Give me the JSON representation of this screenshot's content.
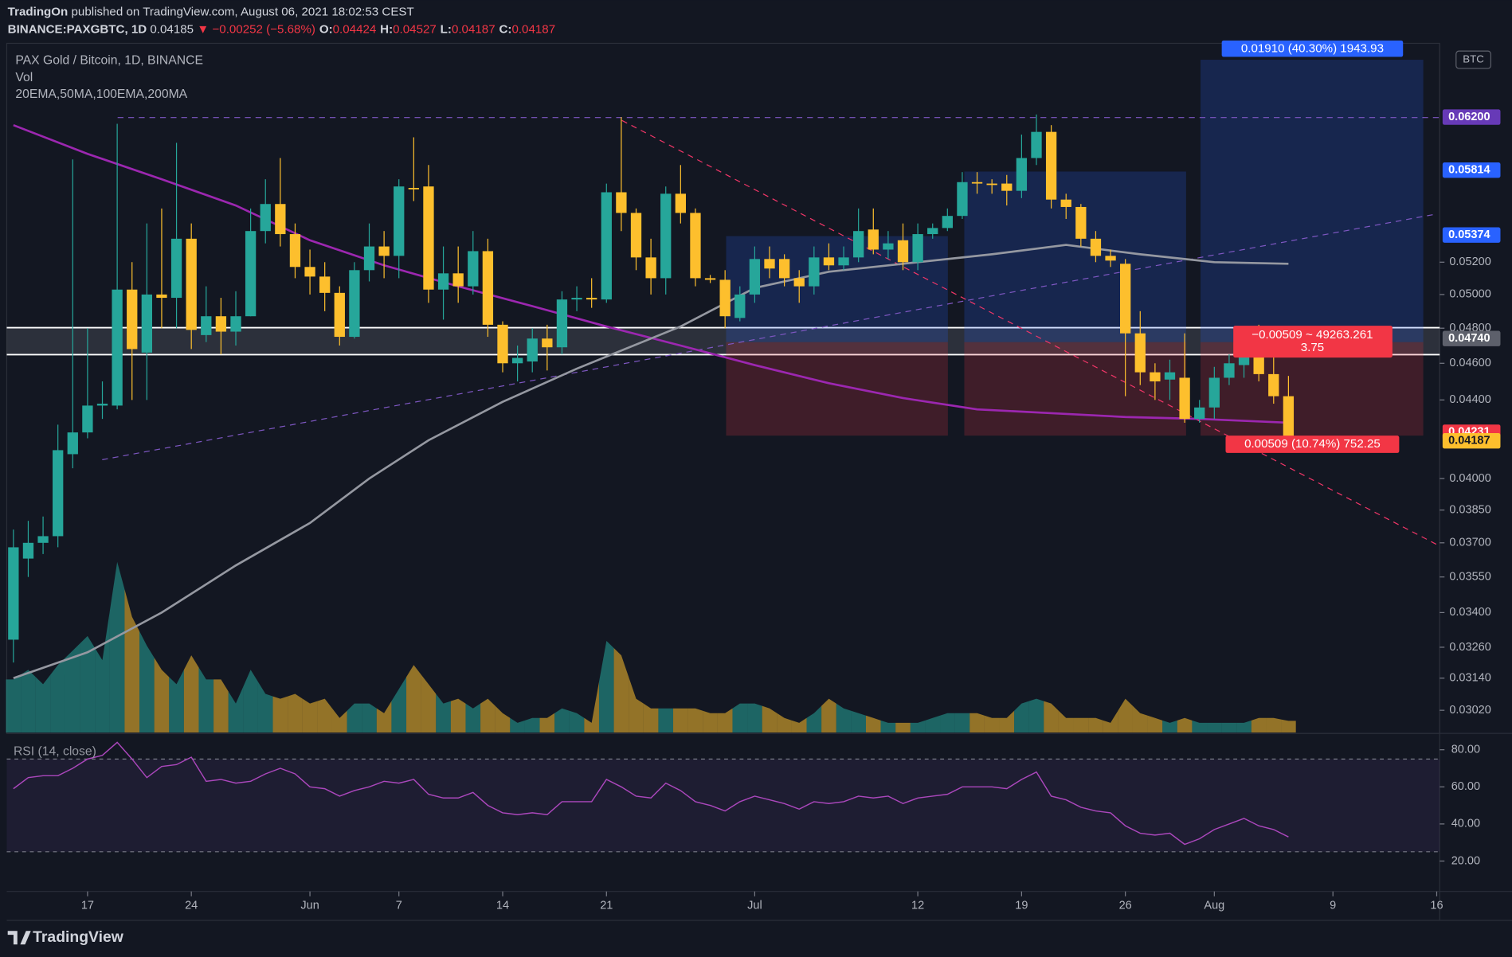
{
  "header": {
    "publisher": "TradingOn",
    "published": "published on TradingView.com, August 06, 2021 18:02:53 CEST",
    "symbol": "BINANCE:PAXGBTC, 1D",
    "last": "0.04185",
    "change": "▼ −0.00252 (−5.68%)",
    "ohlc": [
      [
        "O:",
        "0.04424"
      ],
      [
        "H:",
        "0.04527"
      ],
      [
        "L:",
        "0.04187"
      ],
      [
        "C:",
        "0.04187"
      ]
    ]
  },
  "legend": {
    "main": "PAX Gold / Bitcoin, 1D, BINANCE",
    "vol": "Vol",
    "ma": "20EMA,50MA,100EMA,200MA",
    "rsi": "RSI (14, close)",
    "currency": "BTC"
  },
  "footer": {
    "brand": "TradingView"
  },
  "chart_data": [
    {
      "type": "candlestick",
      "log_scale": true,
      "up_color": "#26a69a",
      "down_color": "#fdbf2d",
      "open": [
        0.0329,
        0.0363,
        0.037,
        0.0373,
        0.0412,
        0.0423,
        0.0437,
        0.0437,
        0.0503,
        0.0466,
        0.05,
        0.0498,
        0.0535,
        0.0476,
        0.0487,
        0.0478,
        0.0487,
        0.054,
        0.0558,
        0.0538,
        0.0517,
        0.0511,
        0.0501,
        0.0475,
        0.0515,
        0.053,
        0.0524,
        0.0569,
        0.057,
        0.0503,
        0.0513,
        0.0505,
        0.0527,
        0.0482,
        0.046,
        0.0461,
        0.0474,
        0.0469,
        0.0497,
        0.0498,
        0.0497,
        0.0566,
        0.0552,
        0.0523,
        0.051,
        0.0565,
        0.0552,
        0.051,
        0.0509,
        0.0486,
        0.05,
        0.0522,
        0.0522,
        0.051,
        0.0505,
        0.0523,
        0.0518,
        0.0523,
        0.0541,
        0.0528,
        0.0534,
        0.052,
        0.0538,
        0.0542,
        0.055,
        0.0573,
        0.0572,
        0.0572,
        0.0567,
        0.059,
        0.0609,
        0.0561,
        0.0556,
        0.0535,
        0.0524,
        0.0519,
        0.0477,
        0.0455,
        0.0451,
        0.0452,
        0.043,
        0.0436,
        0.0452,
        0.0459,
        0.0473,
        0.0454,
        0.0442
      ],
      "high": [
        0.0376,
        0.038,
        0.0382,
        0.0427,
        0.0589,
        0.048,
        0.045,
        0.0615,
        0.052,
        0.0545,
        0.0555,
        0.0601,
        0.0545,
        0.0505,
        0.0498,
        0.0502,
        0.0555,
        0.0575,
        0.059,
        0.0545,
        0.0528,
        0.052,
        0.0505,
        0.052,
        0.0545,
        0.054,
        0.0575,
        0.0605,
        0.0585,
        0.053,
        0.053,
        0.054,
        0.0535,
        0.0484,
        0.047,
        0.048,
        0.0482,
        0.0502,
        0.0505,
        0.051,
        0.0572,
        0.062,
        0.0555,
        0.0535,
        0.057,
        0.0585,
        0.0555,
        0.0512,
        0.0515,
        0.0505,
        0.053,
        0.053,
        0.0525,
        0.0515,
        0.053,
        0.0532,
        0.053,
        0.0555,
        0.0555,
        0.054,
        0.0545,
        0.0545,
        0.0545,
        0.0555,
        0.058,
        0.058,
        0.0575,
        0.0578,
        0.0607,
        0.0622,
        0.0614,
        0.0565,
        0.0558,
        0.054,
        0.0528,
        0.0522,
        0.049,
        0.046,
        0.0462,
        0.0477,
        0.044,
        0.0458,
        0.0465,
        0.0476,
        0.0482,
        0.0474,
        0.0453
      ],
      "low": [
        0.032,
        0.0355,
        0.0365,
        0.0368,
        0.0405,
        0.042,
        0.043,
        0.0435,
        0.044,
        0.044,
        0.048,
        0.048,
        0.0468,
        0.0472,
        0.0465,
        0.047,
        0.0487,
        0.0532,
        0.053,
        0.051,
        0.05,
        0.049,
        0.047,
        0.0474,
        0.0508,
        0.051,
        0.051,
        0.056,
        0.0495,
        0.0485,
        0.0495,
        0.05,
        0.0475,
        0.0455,
        0.045,
        0.0455,
        0.0456,
        0.0465,
        0.049,
        0.0492,
        0.0495,
        0.054,
        0.0515,
        0.05,
        0.05,
        0.0545,
        0.0505,
        0.0507,
        0.048,
        0.0484,
        0.0495,
        0.051,
        0.0505,
        0.0495,
        0.05,
        0.0515,
        0.0515,
        0.052,
        0.0525,
        0.0522,
        0.0515,
        0.0515,
        0.0535,
        0.054,
        0.0548,
        0.0565,
        0.0565,
        0.0557,
        0.0562,
        0.0585,
        0.0555,
        0.0548,
        0.053,
        0.052,
        0.0517,
        0.0442,
        0.0448,
        0.044,
        0.044,
        0.0428,
        0.0428,
        0.043,
        0.0448,
        0.0452,
        0.045,
        0.0438,
        0.0419
      ],
      "close": [
        0.0368,
        0.037,
        0.0373,
        0.0414,
        0.0423,
        0.0437,
        0.0438,
        0.0503,
        0.0468,
        0.05,
        0.0498,
        0.0535,
        0.0479,
        0.0487,
        0.0478,
        0.0487,
        0.054,
        0.0558,
        0.0538,
        0.0517,
        0.0511,
        0.0501,
        0.0475,
        0.0515,
        0.053,
        0.0524,
        0.057,
        0.0568,
        0.0503,
        0.0513,
        0.0505,
        0.0527,
        0.0482,
        0.046,
        0.0463,
        0.0474,
        0.0469,
        0.0497,
        0.0498,
        0.0497,
        0.0566,
        0.0552,
        0.0523,
        0.051,
        0.0565,
        0.0552,
        0.051,
        0.0509,
        0.0487,
        0.05,
        0.0522,
        0.0516,
        0.051,
        0.0505,
        0.0523,
        0.0518,
        0.0523,
        0.054,
        0.0528,
        0.0532,
        0.052,
        0.0538,
        0.0542,
        0.055,
        0.0573,
        0.0572,
        0.0571,
        0.0567,
        0.059,
        0.0609,
        0.0561,
        0.0556,
        0.0535,
        0.0524,
        0.0521,
        0.0477,
        0.0455,
        0.045,
        0.0455,
        0.043,
        0.0436,
        0.0452,
        0.046,
        0.0473,
        0.0454,
        0.0442,
        0.0419
      ],
      "volume": [
        55,
        65,
        50,
        70,
        85,
        100,
        75,
        177,
        120,
        90,
        65,
        50,
        80,
        55,
        55,
        30,
        65,
        40,
        35,
        40,
        30,
        35,
        15,
        30,
        30,
        20,
        45,
        70,
        50,
        30,
        35,
        25,
        35,
        20,
        10,
        15,
        15,
        25,
        20,
        10,
        95,
        80,
        35,
        25,
        25,
        25,
        25,
        20,
        20,
        30,
        30,
        25,
        15,
        10,
        20,
        35,
        25,
        20,
        15,
        10,
        10,
        10,
        15,
        20,
        20,
        20,
        15,
        15,
        30,
        35,
        30,
        15,
        15,
        15,
        10,
        35,
        20,
        15,
        10,
        15,
        10,
        10,
        10,
        10,
        15,
        15,
        12
      ],
      "series": [
        {
          "color": "#9c27b0",
          "x": [
            0,
            5,
            10,
            15,
            20,
            25,
            30,
            35,
            40,
            45,
            50,
            55,
            60,
            65,
            70,
            75,
            80,
            86
          ],
          "values": [
            0.0614,
            0.0593,
            0.0575,
            0.0557,
            0.0534,
            0.0518,
            0.0505,
            0.0493,
            0.0481,
            0.047,
            0.0459,
            0.0449,
            0.0441,
            0.0435,
            0.0433,
            0.0431,
            0.043,
            0.0428
          ]
        },
        {
          "color": "#9598a1",
          "x": [
            0,
            5,
            10,
            15,
            20,
            24,
            28,
            33,
            38,
            45,
            50,
            55,
            61,
            66,
            71,
            76,
            81,
            86
          ],
          "values": [
            0.0314,
            0.0324,
            0.034,
            0.036,
            0.0379,
            0.04,
            0.0419,
            0.0439,
            0.0457,
            0.0481,
            0.0504,
            0.0514,
            0.052,
            0.0525,
            0.0531,
            0.0525,
            0.052,
            0.0519
          ]
        }
      ],
      "xlim": [
        -0.45,
        96.2
      ],
      "ylim": [
        0.0294,
        0.0678
      ],
      "xticks": [
        {
          "value": 5,
          "label": "17"
        },
        {
          "value": 12,
          "label": "24"
        },
        {
          "value": 20,
          "label": "Jun"
        },
        {
          "value": 26,
          "label": "7"
        },
        {
          "value": 33,
          "label": "14"
        },
        {
          "value": 40,
          "label": "21"
        },
        {
          "value": 50,
          "label": "Jul"
        },
        {
          "value": 61,
          "label": "12"
        },
        {
          "value": 68,
          "label": "19"
        },
        {
          "value": 75,
          "label": "26"
        },
        {
          "value": 81,
          "label": "Aug"
        },
        {
          "value": 89,
          "label": "9"
        },
        {
          "value": 96,
          "label": "16"
        }
      ],
      "yticks": [
        {
          "value": 0.052,
          "label": "0.05200"
        },
        {
          "value": 0.05,
          "label": "0.05000"
        },
        {
          "value": 0.048,
          "label": "0.04800"
        },
        {
          "value": 0.046,
          "label": "0.04600"
        },
        {
          "value": 0.044,
          "label": "0.04400"
        },
        {
          "value": 0.04,
          "label": "0.04000"
        },
        {
          "value": 0.0385,
          "label": "0.03850"
        },
        {
          "value": 0.037,
          "label": "0.03700"
        },
        {
          "value": 0.0355,
          "label": "0.03550"
        },
        {
          "value": 0.034,
          "label": "0.03400"
        },
        {
          "value": 0.0326,
          "label": "0.03260"
        },
        {
          "value": 0.0314,
          "label": "0.03140"
        },
        {
          "value": 0.0302,
          "label": "0.03020"
        }
      ],
      "price_tags": [
        {
          "value": 0.062,
          "label": "0.06200",
          "color": "#673ab7"
        },
        {
          "value": 0.05814,
          "label": "0.05814",
          "color": "#2962ff"
        },
        {
          "value": 0.05374,
          "label": "0.05374",
          "color": "#2962ff"
        },
        {
          "value": 0.0474,
          "label": "0.04740",
          "color": "#5d606b"
        },
        {
          "value": 0.04231,
          "label": "0.04231",
          "color": "#f23645"
        },
        {
          "value": 0.04187,
          "label": "0.04187",
          "color": "#fdbf2d"
        }
      ],
      "annotations": [
        "0.01910 (40.30%) 1943.93",
        "−0.00509 ~ 49263.261",
        "3.75",
        "0.00509 (10.74%) 752.25"
      ]
    },
    {
      "type": "line",
      "color": "#ab47bc",
      "values": [
        59,
        65,
        66,
        66,
        70,
        75,
        77,
        84,
        75,
        65,
        71,
        72,
        76,
        63,
        64,
        62,
        63,
        67,
        70,
        67,
        60,
        59,
        55,
        58,
        60,
        63,
        62,
        64,
        56,
        54,
        54,
        57,
        50,
        46,
        45,
        46,
        45,
        52,
        52,
        52,
        64,
        60,
        55,
        54,
        62,
        58,
        52,
        50,
        47,
        52,
        55,
        53,
        51,
        48,
        52,
        51,
        52,
        55,
        54,
        55,
        51,
        54,
        55,
        56,
        60,
        60,
        60,
        59,
        64,
        68,
        55,
        53,
        49,
        47,
        46,
        39,
        35,
        34,
        35,
        29,
        32,
        37,
        40,
        43,
        39,
        37,
        33
      ],
      "ylim": [
        3.6,
        88.3
      ],
      "yticks": [
        {
          "value": 80,
          "label": "80.00"
        },
        {
          "value": 60,
          "label": "60.00"
        },
        {
          "value": 40,
          "label": "40.00"
        },
        {
          "value": 20,
          "label": "20.00"
        }
      ],
      "bands": [
        75,
        25
      ]
    }
  ]
}
